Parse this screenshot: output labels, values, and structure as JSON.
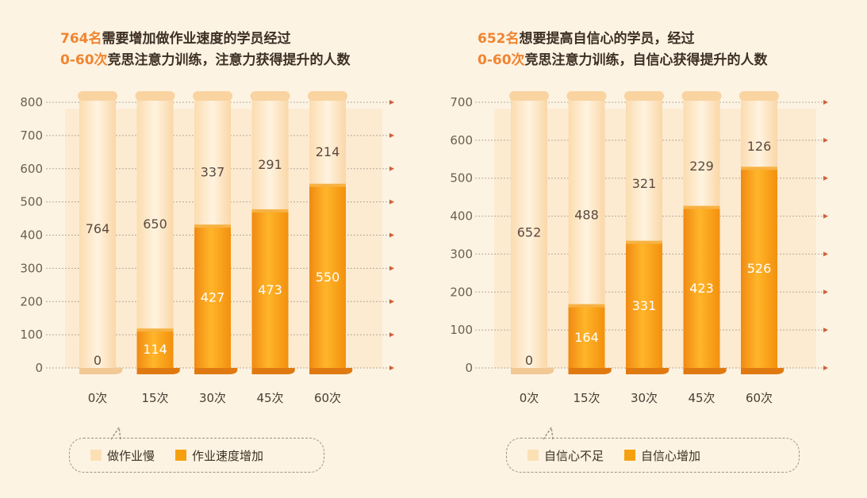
{
  "colors": {
    "background": "#fdf3e3",
    "remaining": "#fbe6c6",
    "increased": "#f5a10f",
    "highlight": "#f08530"
  },
  "left": {
    "title_line1_highlight": "764名",
    "title_line1_rest": "需要增加做作业速度的学员经过",
    "title_line2_highlight": "0-60次",
    "title_line2_rest": "竞思注意力训练，注意力获得提升的人数",
    "legend": [
      "做作业慢",
      "作业速度增加"
    ]
  },
  "right": {
    "title_line1_highlight": "652名",
    "title_line1_rest": "想要提高自信心的学员，经过",
    "title_line2_highlight": "0-60次",
    "title_line2_rest": "竞思注意力训练，自信心获得提升的人数",
    "legend": [
      "自信心不足",
      "自信心增加"
    ]
  },
  "chart_data": [
    {
      "type": "bar",
      "stacked": true,
      "categories": [
        "0次",
        "15次",
        "30次",
        "45次",
        "60次"
      ],
      "series": [
        {
          "name": "作业速度增加",
          "values": [
            0,
            114,
            427,
            473,
            550
          ]
        },
        {
          "name": "做作业慢",
          "values": [
            764,
            650,
            337,
            291,
            214
          ]
        }
      ],
      "yticks": [
        0,
        100,
        200,
        300,
        400,
        500,
        600,
        700,
        800
      ],
      "ylim": [
        0,
        800
      ],
      "grid": true,
      "legend_position": "bottom"
    },
    {
      "type": "bar",
      "stacked": true,
      "categories": [
        "0次",
        "15次",
        "30次",
        "45次",
        "60次"
      ],
      "series": [
        {
          "name": "自信心增加",
          "values": [
            0,
            164,
            331,
            423,
            526
          ]
        },
        {
          "name": "自信心不足",
          "values": [
            652,
            488,
            321,
            229,
            126
          ]
        }
      ],
      "yticks": [
        0,
        100,
        200,
        300,
        400,
        500,
        600,
        700
      ],
      "ylim": [
        0,
        700
      ],
      "grid": true,
      "legend_position": "bottom"
    }
  ]
}
